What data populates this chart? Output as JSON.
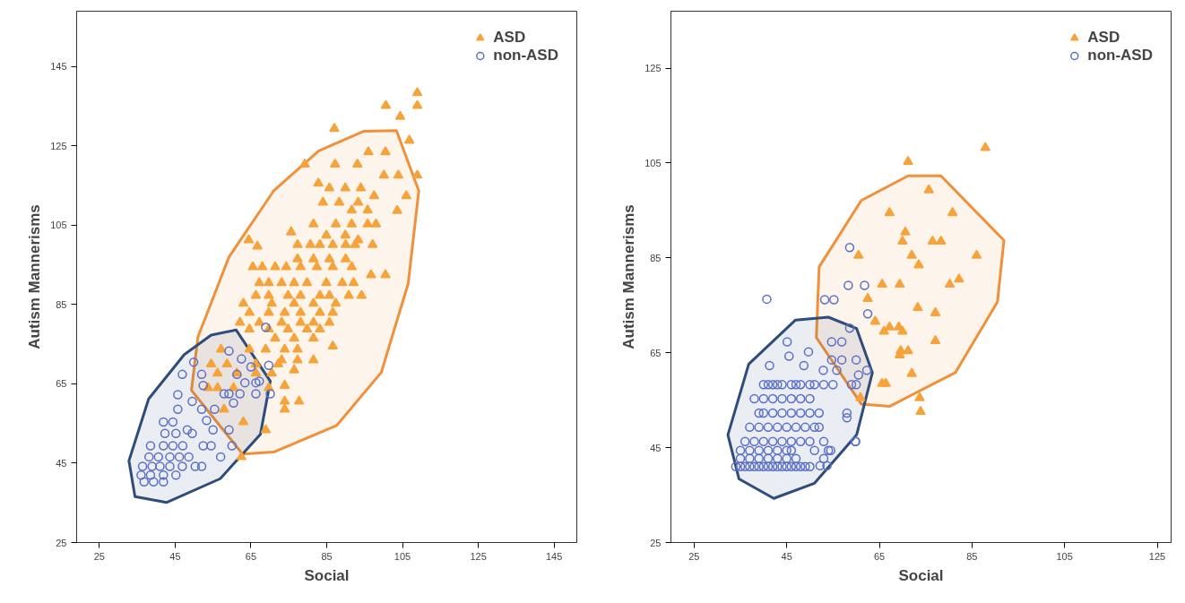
{
  "chart_data": [
    {
      "type": "scatter",
      "xlabel": "Social",
      "ylabel": "Autism Mannerisms",
      "xlim": [
        19,
        151
      ],
      "ylim": [
        25,
        159
      ],
      "xticks": [
        25,
        45,
        65,
        85,
        105,
        125,
        145
      ],
      "yticks": [
        25,
        45,
        65,
        85,
        105,
        125,
        145
      ],
      "grid": false,
      "legend": "top right",
      "series": [
        {
          "type": "area",
          "color": "#f0903a",
          "x": [
            103.4,
            109.3,
            106.5,
            99.4,
            87.6,
            71,
            62.8,
            49.3,
            51,
            59.2,
            71,
            82.9,
            94.7
          ],
          "values": [
            128.9,
            113.7,
            90.3,
            67.9,
            54.5,
            47.8,
            47.3,
            63.4,
            76.8,
            97,
            113.7,
            123.8,
            128.7
          ]
        },
        {
          "type": "area",
          "color": "#2e4d7b",
          "x": [
            61.1,
            70.1,
            67.5,
            56.9,
            42.7,
            34.4,
            32.8,
            38,
            47.4,
            54.5
          ],
          "values": [
            78.6,
            65.7,
            52.3,
            41.1,
            35.1,
            36.6,
            45.6,
            61.2,
            72.4,
            77.3
          ]
        },
        {
          "name": "ASD",
          "color": "#f5a33a",
          "marker": "triangle",
          "x": [
            108.9,
            108.9,
            100.6,
            104.4,
            87,
            106.8,
            108.9,
            79.2,
            87.2,
            93.1,
            96,
            100.5,
            100.1,
            103.9,
            82.8,
            85.7,
            89.9,
            94,
            97.5,
            106,
            84,
            88.3,
            93.3,
            91.6,
            95.8,
            103.6,
            81.5,
            87.4,
            91.6,
            95.8,
            98,
            75.6,
            84.9,
            89.9,
            93.3,
            64.4,
            66.7,
            77.3,
            80.7,
            83.2,
            86.6,
            90,
            92.5,
            97.1,
            77.3,
            81.5,
            85.7,
            90,
            65.5,
            68,
            71.4,
            74.3,
            78.1,
            82.4,
            86.6,
            91.6,
            96.7,
            100.5,
            67.2,
            69.7,
            73.1,
            76.4,
            79.8,
            84.9,
            89.1,
            92.1,
            66.3,
            69.7,
            74.8,
            78.1,
            83.2,
            85.7,
            90.8,
            94.2,
            63,
            70.5,
            76.4,
            81.5,
            87.4,
            64.6,
            69.7,
            73.9,
            78.1,
            83.2,
            86.6,
            62.1,
            67.2,
            73.1,
            78.1,
            81.5,
            85.7,
            64.6,
            69.7,
            74.8,
            79.8,
            83.2,
            71.4,
            76.4,
            81.5,
            86.6,
            57.1,
            64.6,
            68.9,
            73.9,
            77.3,
            73.1,
            77.3,
            81.5,
            54.5,
            58.7,
            66.3,
            72.2,
            76.4,
            56.2,
            61.3,
            66.3,
            70.5,
            73.9,
            53.7,
            56.2,
            60.4,
            69.7,
            73.9,
            77.7,
            73.9,
            57.9,
            63,
            68.9,
            62.5
          ],
          "values": [
            138.4,
            135.2,
            135.2,
            132.4,
            129.4,
            126.4,
            117.6,
            120.4,
            120.4,
            120.4,
            123.5,
            123.5,
            117.6,
            117.6,
            115.6,
            114.4,
            114.4,
            114.4,
            112.4,
            112.4,
            110.8,
            110.8,
            110.8,
            108.8,
            108.8,
            108.7,
            105.3,
            105.3,
            105.3,
            105.3,
            105.3,
            103.3,
            102.5,
            102.5,
            101.3,
            101.3,
            99.7,
            100.1,
            100.1,
            100.1,
            100.1,
            100.1,
            100.1,
            100.1,
            96.5,
            96.5,
            96.5,
            96.5,
            94.5,
            94.5,
            94.5,
            94.5,
            94.5,
            94.5,
            94.5,
            94.5,
            92.5,
            92.5,
            90.5,
            90.5,
            90.5,
            90.5,
            90.5,
            90.5,
            90.5,
            90.5,
            87.3,
            87.3,
            87.3,
            87.3,
            87.3,
            87.3,
            87.3,
            87.3,
            85.3,
            85.3,
            85.3,
            85.3,
            85.3,
            83,
            83,
            83,
            83,
            83,
            83,
            80.5,
            80.5,
            80.5,
            80.5,
            80.5,
            80.5,
            78.8,
            78.8,
            78.8,
            78.8,
            78.8,
            76.5,
            76.5,
            76.5,
            74.5,
            73.7,
            73.7,
            73.7,
            73.7,
            73.7,
            71,
            71,
            71,
            70,
            70,
            70,
            70,
            68.5,
            67.7,
            67.7,
            67.7,
            67.7,
            64.6,
            64,
            64,
            64,
            64,
            60.6,
            60.6,
            58.6,
            58.6,
            55.4,
            53.4,
            46.6
          ]
        },
        {
          "name": "non-ASD",
          "color": "#5b6fc6",
          "marker": "circle",
          "x": [
            68.9,
            59.2,
            62.5,
            65,
            69.7,
            49.9,
            46.9,
            52,
            61.3,
            66.3,
            52.4,
            63.4,
            67.2,
            45.7,
            57.9,
            59.2,
            62.1,
            66.3,
            70.1,
            49.5,
            60.4,
            45.7,
            52,
            55.4,
            41.9,
            44.4,
            53.3,
            48.2,
            55,
            59.2,
            42.3,
            45.2,
            49.5,
            52.4,
            54.5,
            60,
            38.5,
            41.9,
            44.4,
            47,
            57,
            38.1,
            40.6,
            43.6,
            46.1,
            48.6,
            36.4,
            38.9,
            41,
            43.6,
            46.9,
            50.3,
            52,
            36,
            38.5,
            41.9,
            45.2,
            36.8,
            39.3,
            41.9
          ],
          "values": [
            79.3,
            73.3,
            71.3,
            69.3,
            69.7,
            70.5,
            67.4,
            67.4,
            67.4,
            65.3,
            64.6,
            65.3,
            65.7,
            62.3,
            62.5,
            62.5,
            62.5,
            62.5,
            62.5,
            60.6,
            60.2,
            58.6,
            58.6,
            58.6,
            55.4,
            55.4,
            55.8,
            53.4,
            53.4,
            53.4,
            52.5,
            52.5,
            52.5,
            49.4,
            49.4,
            49.4,
            49.4,
            49.4,
            49.4,
            49.4,
            46.6,
            46.6,
            46.6,
            46.6,
            46.6,
            46.6,
            44.2,
            44.2,
            44.2,
            44.2,
            44.2,
            44.2,
            44.2,
            42,
            42,
            42,
            42,
            40.3,
            40.3,
            40.3
          ]
        }
      ]
    },
    {
      "type": "scatter",
      "xlabel": "Social",
      "ylabel": "Autism Mannerisms",
      "xlim": [
        20,
        128
      ],
      "ylim": [
        25,
        137
      ],
      "xticks": [
        25,
        45,
        65,
        85,
        105,
        125
      ],
      "yticks": [
        25,
        45,
        65,
        85,
        105,
        125
      ],
      "grid": false,
      "legend": "top right",
      "series": [
        {
          "type": "area",
          "color": "#f0903a",
          "x": [
            78.3,
            91.9,
            90.5,
            81.4,
            67.2,
            61.1,
            51.4,
            52,
            61.1,
            71.2
          ],
          "values": [
            102.3,
            88.7,
            75.7,
            60.8,
            53.7,
            54.2,
            68.2,
            83.1,
            97.1,
            102.3
          ]
        },
        {
          "type": "area",
          "color": "#2e4d7b",
          "x": [
            54,
            60.1,
            63.5,
            60.1,
            51,
            42.2,
            34.7,
            32.3,
            36.8,
            46.9
          ],
          "values": [
            72.5,
            70.1,
            60.8,
            47.7,
            37.5,
            34.3,
            38.4,
            47.7,
            62.6,
            71.9
          ]
        },
        {
          "name": "ASD",
          "color": "#f5a33a",
          "marker": "triangle",
          "x": [
            87.9,
            71.2,
            75.7,
            67.2,
            80.8,
            70.6,
            70,
            76.5,
            78.3,
            60.5,
            72,
            86,
            73.5,
            65.6,
            69.4,
            80.2,
            82.2,
            62.5,
            73.3,
            77.1,
            64.1,
            66,
            67.2,
            69.2,
            70,
            77.1,
            69.6,
            71.2,
            69.4,
            72,
            65.6,
            66.4,
            60.9,
            73.7,
            73.9
          ],
          "values": [
            108.2,
            105.3,
            99.3,
            94.5,
            94.5,
            90.4,
            88.5,
            88.5,
            88.5,
            85.5,
            85.5,
            85.5,
            83.5,
            79.4,
            79.4,
            79.4,
            80.5,
            76.4,
            74.5,
            73.4,
            71.6,
            69.5,
            70.4,
            70.4,
            69.5,
            67.5,
            65.4,
            65.4,
            64.5,
            60.6,
            58.5,
            58.5,
            55.5,
            55.5,
            52.6
          ]
        },
        {
          "name": "non-ASD",
          "color": "#5b6fc6",
          "marker": "circle",
          "x": [
            34,
            35,
            36,
            37,
            38,
            39,
            40,
            41,
            42,
            43,
            44,
            45,
            46,
            47,
            48,
            49,
            50,
            35,
            37,
            39,
            41,
            43,
            45,
            47,
            53,
            35,
            37,
            39,
            41,
            43,
            45,
            46,
            51,
            54,
            36,
            38,
            40,
            42,
            44,
            46,
            48,
            50,
            53,
            59.9,
            37,
            39,
            41,
            43,
            45,
            47,
            49,
            51,
            52,
            39,
            40,
            42,
            44,
            46,
            48,
            50,
            52,
            58,
            38,
            40,
            42,
            44,
            46,
            48,
            50,
            40,
            41,
            42,
            43,
            44,
            46,
            47,
            48,
            50,
            51,
            53,
            55,
            59,
            60,
            41.3,
            45.5,
            48.7,
            49.7,
            45.1,
            54.7,
            56.9,
            58.6,
            40.7,
            53.2,
            55.2,
            58.3,
            61.8,
            58.6,
            62.5,
            55.8,
            60.5,
            62.3,
            52.9,
            54.7,
            56.9,
            60,
            58,
            59.8,
            54.5,
            52.2,
            53.7
          ],
          "values": [
            41,
            41,
            41,
            41,
            41,
            41,
            41,
            41,
            41,
            41,
            41,
            41,
            41,
            41,
            41,
            41,
            41,
            42.7,
            42.7,
            42.7,
            42.7,
            42.7,
            42.7,
            42.7,
            42.7,
            44.4,
            44.4,
            44.4,
            44.4,
            44.4,
            44.4,
            44.4,
            44.4,
            44.4,
            46.3,
            46.3,
            46.3,
            46.3,
            46.3,
            46.3,
            46.3,
            46.3,
            46.3,
            46.3,
            49.3,
            49.3,
            49.3,
            49.3,
            49.3,
            49.3,
            49.3,
            49.3,
            49.3,
            52.3,
            52.3,
            52.3,
            52.3,
            52.3,
            52.3,
            52.3,
            52.3,
            52.3,
            55.3,
            55.3,
            55.3,
            55.3,
            55.3,
            55.3,
            55.3,
            58.3,
            58.3,
            58.3,
            58.3,
            58.3,
            58.3,
            58.3,
            58.3,
            58.3,
            58.3,
            58.3,
            58.3,
            58.3,
            58.3,
            62.3,
            64.3,
            62.3,
            65.2,
            67.3,
            67.3,
            67.3,
            70.2,
            76.3,
            76.2,
            76.2,
            79.2,
            79.2,
            87.2,
            73.2,
            61.3,
            60.3,
            61.3,
            61.3,
            63.5,
            63.5,
            63.5,
            51.3,
            46.3,
            44.4,
            41.2,
            41.2
          ]
        }
      ]
    }
  ]
}
